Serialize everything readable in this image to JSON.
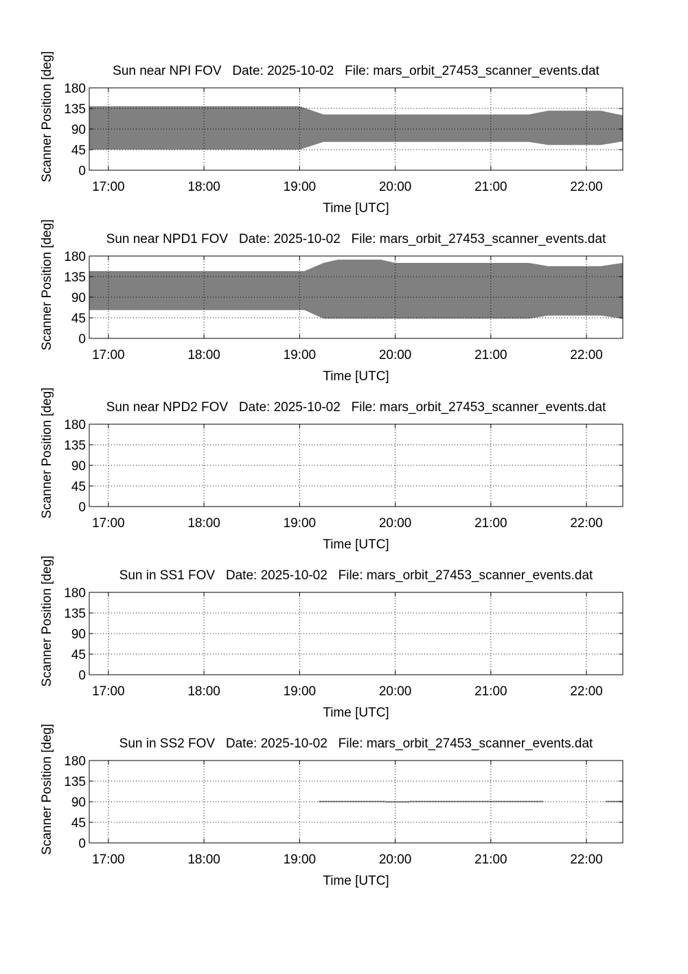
{
  "figure": {
    "background": "#ffffff",
    "fill_color": "#808080",
    "axis_color": "#000000",
    "grid_style": "dotted"
  },
  "chart_data": [
    {
      "type": "area",
      "title": "Sun near NPI FOV   Date: 2025-10-02   File: mars_orbit_27453_scanner_events.dat",
      "xlabel": "Time [UTC]",
      "ylabel": "Scanner Position [deg]",
      "x_unit": "hours UTC",
      "xlim": [
        16.8,
        22.38
      ],
      "ylim": [
        0,
        180
      ],
      "xticks": [
        17,
        18,
        19,
        20,
        21,
        22
      ],
      "xtick_labels": [
        "17:00",
        "18:00",
        "19:00",
        "20:00",
        "21:00",
        "22:00"
      ],
      "yticks": [
        0,
        45,
        90,
        135,
        180
      ],
      "ytick_labels": [
        "0",
        "45",
        "90",
        "135",
        "180"
      ],
      "grid": true,
      "band": [
        {
          "x": 16.8,
          "low": 45,
          "high": 140
        },
        {
          "x": 19.0,
          "low": 45,
          "high": 140
        },
        {
          "x": 19.25,
          "low": 62,
          "high": 122
        },
        {
          "x": 21.4,
          "low": 62,
          "high": 122
        },
        {
          "x": 21.6,
          "low": 55,
          "high": 130
        },
        {
          "x": 22.15,
          "low": 55,
          "high": 130
        },
        {
          "x": 22.38,
          "low": 63,
          "high": 120
        }
      ]
    },
    {
      "type": "area",
      "title": "Sun near NPD1 FOV   Date: 2025-10-02   File: mars_orbit_27453_scanner_events.dat",
      "xlabel": "Time [UTC]",
      "ylabel": "Scanner Position [deg]",
      "x_unit": "hours UTC",
      "xlim": [
        16.8,
        22.38
      ],
      "ylim": [
        0,
        180
      ],
      "xticks": [
        17,
        18,
        19,
        20,
        21,
        22
      ],
      "xtick_labels": [
        "17:00",
        "18:00",
        "19:00",
        "20:00",
        "21:00",
        "22:00"
      ],
      "yticks": [
        0,
        45,
        90,
        135,
        180
      ],
      "ytick_labels": [
        "0",
        "45",
        "90",
        "135",
        "180"
      ],
      "grid": true,
      "band": [
        {
          "x": 16.8,
          "low": 62,
          "high": 147
        },
        {
          "x": 19.05,
          "low": 62,
          "high": 147
        },
        {
          "x": 19.25,
          "low": 43,
          "high": 165
        },
        {
          "x": 19.4,
          "low": 43,
          "high": 172
        },
        {
          "x": 19.85,
          "low": 43,
          "high": 172
        },
        {
          "x": 20.0,
          "low": 43,
          "high": 165
        },
        {
          "x": 21.4,
          "low": 43,
          "high": 165
        },
        {
          "x": 21.6,
          "low": 50,
          "high": 158
        },
        {
          "x": 22.15,
          "low": 50,
          "high": 158
        },
        {
          "x": 22.38,
          "low": 43,
          "high": 165
        }
      ]
    },
    {
      "type": "area",
      "title": "Sun near NPD2 FOV   Date: 2025-10-02   File: mars_orbit_27453_scanner_events.dat",
      "xlabel": "Time [UTC]",
      "ylabel": "Scanner Position [deg]",
      "x_unit": "hours UTC",
      "xlim": [
        16.8,
        22.38
      ],
      "ylim": [
        0,
        180
      ],
      "xticks": [
        17,
        18,
        19,
        20,
        21,
        22
      ],
      "xtick_labels": [
        "17:00",
        "18:00",
        "19:00",
        "20:00",
        "21:00",
        "22:00"
      ],
      "yticks": [
        0,
        45,
        90,
        135,
        180
      ],
      "ytick_labels": [
        "0",
        "45",
        "90",
        "135",
        "180"
      ],
      "grid": true,
      "band": []
    },
    {
      "type": "area",
      "title": "Sun in SS1 FOV   Date: 2025-10-02   File: mars_orbit_27453_scanner_events.dat",
      "xlabel": "Time [UTC]",
      "ylabel": "Scanner Position [deg]",
      "x_unit": "hours UTC",
      "xlim": [
        16.8,
        22.38
      ],
      "ylim": [
        0,
        180
      ],
      "xticks": [
        17,
        18,
        19,
        20,
        21,
        22
      ],
      "xtick_labels": [
        "17:00",
        "18:00",
        "19:00",
        "20:00",
        "21:00",
        "22:00"
      ],
      "yticks": [
        0,
        45,
        90,
        135,
        180
      ],
      "ytick_labels": [
        "0",
        "45",
        "90",
        "135",
        "180"
      ],
      "grid": true,
      "band": []
    },
    {
      "type": "area",
      "title": "Sun in SS2 FOV   Date: 2025-10-02   File: mars_orbit_27453_scanner_events.dat",
      "xlabel": "Time [UTC]",
      "ylabel": "Scanner Position [deg]",
      "x_unit": "hours UTC",
      "xlim": [
        16.8,
        22.38
      ],
      "ylim": [
        0,
        180
      ],
      "xticks": [
        17,
        18,
        19,
        20,
        21,
        22
      ],
      "xtick_labels": [
        "17:00",
        "18:00",
        "19:00",
        "20:00",
        "21:00",
        "22:00"
      ],
      "yticks": [
        0,
        45,
        90,
        135,
        180
      ],
      "ytick_labels": [
        "0",
        "45",
        "90",
        "135",
        "180"
      ],
      "grid": true,
      "segments": [
        {
          "x_start": 19.2,
          "x_end": 19.9,
          "low": 89,
          "high": 92
        },
        {
          "x_start": 19.9,
          "x_end": 20.15,
          "low": 88,
          "high": 91
        },
        {
          "x_start": 20.15,
          "x_end": 21.55,
          "low": 89,
          "high": 92
        },
        {
          "x_start": 22.2,
          "x_end": 22.38,
          "low": 89,
          "high": 92
        }
      ]
    }
  ]
}
